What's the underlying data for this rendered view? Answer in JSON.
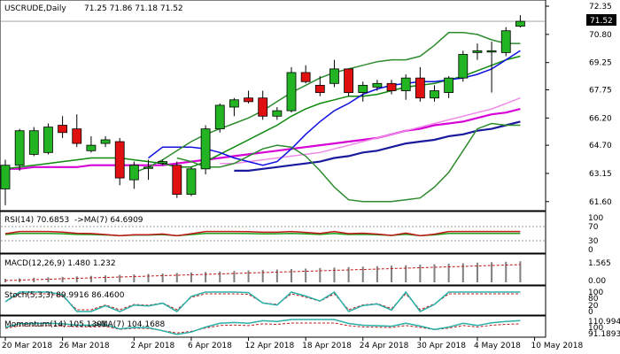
{
  "chart_data": {
    "type": "candlestick",
    "symbol_label": "USCRUDE,Daily",
    "ohlc_label": "71.25 71.86 71.18 71.52",
    "last_price": "71.52",
    "price_axis": {
      "ticks": [
        "72.35",
        "70.80",
        "69.25",
        "67.75",
        "66.20",
        "64.70",
        "63.15",
        "61.60"
      ],
      "ylim": [
        61.2,
        72.4
      ]
    },
    "date_labels": [
      {
        "label": "20 Mar 2018",
        "index": 0
      },
      {
        "label": "26 Mar 2018",
        "index": 4
      },
      {
        "label": "2 Apr 2018",
        "index": 9
      },
      {
        "label": "6 Apr 2018",
        "index": 13
      },
      {
        "label": "12 Apr 2018",
        "index": 17
      },
      {
        "label": "18 Apr 2018",
        "index": 21
      },
      {
        "label": "24 Apr 2018",
        "index": 25
      },
      {
        "label": "30 Apr 2018",
        "index": 29
      },
      {
        "label": "4 May 2018",
        "index": 33
      },
      {
        "label": "10 May 2018",
        "index": 37
      }
    ],
    "candles": [
      {
        "o": 62.3,
        "h": 63.9,
        "l": 61.4,
        "c": 63.6
      },
      {
        "o": 63.6,
        "h": 65.6,
        "l": 63.3,
        "c": 65.5
      },
      {
        "o": 64.2,
        "h": 65.7,
        "l": 64.1,
        "c": 65.5
      },
      {
        "o": 64.3,
        "h": 65.9,
        "l": 64.2,
        "c": 65.7
      },
      {
        "o": 65.8,
        "h": 66.3,
        "l": 65.1,
        "c": 65.4
      },
      {
        "o": 65.6,
        "h": 66.4,
        "l": 64.6,
        "c": 64.8
      },
      {
        "o": 64.4,
        "h": 65.2,
        "l": 64.3,
        "c": 64.7
      },
      {
        "o": 64.8,
        "h": 65.2,
        "l": 64.6,
        "c": 65.0
      },
      {
        "o": 64.9,
        "h": 65.1,
        "l": 62.5,
        "c": 62.9
      },
      {
        "o": 62.8,
        "h": 63.8,
        "l": 62.3,
        "c": 63.6
      },
      {
        "o": 63.5,
        "h": 63.9,
        "l": 62.8,
        "c": 63.5
      },
      {
        "o": 63.7,
        "h": 63.9,
        "l": 63.6,
        "c": 63.8
      },
      {
        "o": 63.6,
        "h": 63.8,
        "l": 61.8,
        "c": 62.0
      },
      {
        "o": 62.0,
        "h": 63.5,
        "l": 61.9,
        "c": 63.4
      },
      {
        "o": 63.4,
        "h": 65.8,
        "l": 63.1,
        "c": 65.6
      },
      {
        "o": 65.6,
        "h": 67.0,
        "l": 65.4,
        "c": 66.9
      },
      {
        "o": 66.8,
        "h": 67.3,
        "l": 66.3,
        "c": 67.2
      },
      {
        "o": 67.3,
        "h": 67.7,
        "l": 67.0,
        "c": 67.1
      },
      {
        "o": 67.3,
        "h": 67.7,
        "l": 66.1,
        "c": 66.3
      },
      {
        "o": 66.3,
        "h": 66.8,
        "l": 66.1,
        "c": 66.6
      },
      {
        "o": 66.6,
        "h": 69.0,
        "l": 66.5,
        "c": 68.7
      },
      {
        "o": 68.7,
        "h": 69.1,
        "l": 68.1,
        "c": 68.2
      },
      {
        "o": 68.0,
        "h": 68.5,
        "l": 67.4,
        "c": 67.6
      },
      {
        "o": 68.1,
        "h": 69.4,
        "l": 67.9,
        "c": 68.9
      },
      {
        "o": 68.9,
        "h": 68.9,
        "l": 67.4,
        "c": 67.6
      },
      {
        "o": 67.6,
        "h": 68.2,
        "l": 67.1,
        "c": 68.0
      },
      {
        "o": 67.9,
        "h": 68.3,
        "l": 67.7,
        "c": 68.1
      },
      {
        "o": 68.1,
        "h": 68.3,
        "l": 67.5,
        "c": 67.7
      },
      {
        "o": 67.7,
        "h": 68.6,
        "l": 67.2,
        "c": 68.4
      },
      {
        "o": 68.4,
        "h": 69.0,
        "l": 67.1,
        "c": 67.3
      },
      {
        "o": 67.3,
        "h": 68.0,
        "l": 67.1,
        "c": 67.7
      },
      {
        "o": 67.6,
        "h": 68.5,
        "l": 67.3,
        "c": 68.4
      },
      {
        "o": 68.4,
        "h": 69.9,
        "l": 68.2,
        "c": 69.7
      },
      {
        "o": 69.8,
        "h": 70.3,
        "l": 69.4,
        "c": 69.9
      },
      {
        "o": 69.9,
        "h": 70.4,
        "l": 67.6,
        "c": 69.9
      },
      {
        "o": 69.8,
        "h": 71.2,
        "l": 69.6,
        "c": 71.0
      },
      {
        "o": 71.25,
        "h": 71.86,
        "l": 71.18,
        "c": 71.52
      }
    ],
    "moving_averages": [
      {
        "color": "#1a1a9e",
        "values": [
          63.3,
          63.3,
          63.4,
          63.5,
          63.6,
          63.7,
          63.8,
          64.0,
          64.1,
          64.3,
          64.4,
          64.6,
          64.8,
          64.9,
          65.0,
          65.2,
          65.3,
          65.5,
          65.6,
          65.8,
          66.0
        ]
      },
      {
        "color": "#d600d6",
        "values": [
          63.4,
          63.4,
          63.5,
          63.5,
          63.5,
          63.5,
          63.6,
          63.6,
          63.6,
          63.6,
          63.6,
          63.6,
          63.7,
          63.8,
          63.9,
          64.0,
          64.1,
          64.2,
          64.3,
          64.4,
          64.5,
          64.6,
          64.7,
          64.8,
          64.9,
          65.0,
          65.1,
          65.3,
          65.5,
          65.6,
          65.8,
          65.9,
          66.0,
          66.2,
          66.4,
          66.5,
          66.7
        ]
      },
      {
        "color": "#f08ce8",
        "values": [
          63.7,
          63.7,
          63.8,
          63.9,
          64.0,
          64.1,
          64.2,
          64.3,
          64.5,
          64.7,
          64.9,
          65.1,
          65.3,
          65.5,
          65.7,
          65.9,
          66.1,
          66.3,
          66.5,
          66.7,
          67.0,
          67.3
        ]
      },
      {
        "color": "#0d8a0d",
        "values": [
          63.4,
          63.5,
          63.6,
          63.7,
          63.8,
          63.9,
          64.0,
          64.0,
          64.0,
          63.9,
          63.8,
          63.7,
          63.5,
          63.5,
          63.8,
          64.2,
          64.6,
          65.0,
          65.4,
          65.8,
          66.3,
          66.7,
          67.0,
          67.2,
          67.4,
          67.4,
          67.5,
          67.7,
          67.9,
          68.0,
          68.1,
          68.3,
          68.5,
          68.8,
          69.1,
          69.4,
          69.6
        ]
      },
      {
        "color": "#1010e0",
        "values": [
          64.0,
          64.6,
          64.6,
          64.6,
          64.5,
          64.3,
          64.0,
          63.8,
          63.6,
          63.8,
          64.5,
          65.3,
          66.0,
          66.6,
          67.0,
          67.5,
          67.8,
          68.0,
          68.1,
          68.2,
          68.2,
          68.3,
          68.4,
          68.6,
          68.9,
          69.4,
          69.9
        ]
      },
      {
        "color": "#2e8b2e",
        "values": [
          63.2,
          63.5,
          63.9,
          64.4,
          64.9,
          65.3,
          65.6,
          65.9,
          66.2,
          66.6,
          67.1,
          67.6,
          68.0,
          68.4,
          68.7,
          68.9,
          69.1,
          69.3,
          69.4,
          69.4,
          69.6,
          70.2,
          70.9,
          70.9,
          70.8,
          70.5,
          70.3,
          70.3
        ]
      },
      {
        "color": "#2e8b2e",
        "values": [
          64.0,
          63.8,
          63.5,
          63.5,
          63.7,
          64.1,
          64.5,
          64.7,
          64.6,
          64.1,
          63.3,
          62.4,
          61.7,
          61.6,
          61.6,
          61.6,
          61.7,
          61.8,
          62.4,
          63.2,
          64.4,
          65.6,
          65.9,
          65.8,
          65.8
        ]
      }
    ],
    "indicators": [
      {
        "label": "RSI(14) 70.6853",
        "ma_label": "->MA(7) 64.6909",
        "axis_ticks": [
          "100",
          "70",
          "30",
          "0"
        ]
      },
      {
        "label": "MACD(12,26,9) 1.480 1.232",
        "axis_ticks": [
          "1.565",
          "0.00"
        ]
      },
      {
        "label": "Stoch(5,3,3) 89.9916 86.4600",
        "axis_ticks": [
          "100",
          "80",
          "20",
          "0"
        ]
      },
      {
        "label": "Momentum(14) 105.1301",
        "ma_label": "->MA(7) 104.1688",
        "axis_ticks": [
          "110.9945",
          "100",
          "91.1893"
        ]
      }
    ]
  },
  "colors": {
    "bull": "#22b422",
    "bear": "#e01010",
    "frame": "#000000",
    "last_price_bg": "#000000",
    "last_price_fg": "#ffffff",
    "rsi": "#c01818",
    "rsi_ma": "#18a018",
    "indicator_main": "#2ab0a8",
    "indicator_signal": "#c01818"
  }
}
